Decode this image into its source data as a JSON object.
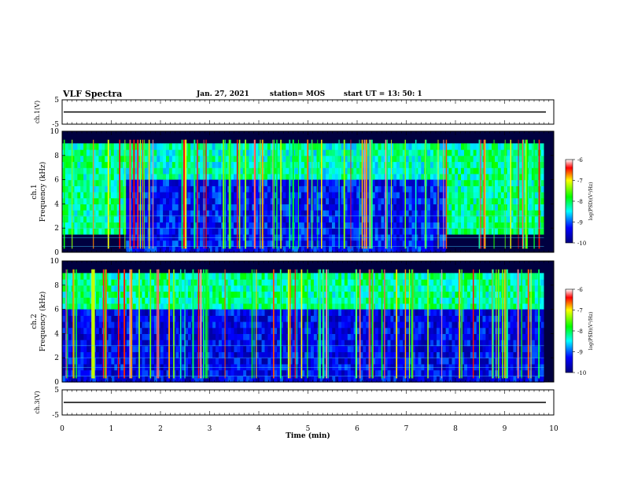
{
  "header": {
    "title": "VLF Spectra",
    "date": "Jan. 27, 2021",
    "station": "station= MOS",
    "start": "start  UT =   13: 50: 1"
  },
  "colors": {
    "colormap": [
      "#000080",
      "#0000ff",
      "#00ffff",
      "#00ff00",
      "#ffff00",
      "#ff0000",
      "#ffffff"
    ]
  },
  "chart_data": [
    {
      "type": "line",
      "name": "ch1-voltage",
      "ylabel": "ch.1(V)",
      "ylim": [
        -5,
        5
      ],
      "yticks": [
        "5",
        "-5"
      ],
      "x": [
        0,
        10
      ],
      "y": [
        0,
        0
      ]
    },
    {
      "type": "heatmap",
      "name": "ch1-spectrogram",
      "ylabel": "ch.1 Frequency (kHz)",
      "ylim": [
        0,
        10
      ],
      "yticks": [
        "0",
        "2",
        "4",
        "6",
        "8",
        "10"
      ],
      "xlim": [
        0,
        10
      ],
      "colorbar_label": "log(PSD)(V²/Hz)",
      "colorbar_ticks": [
        "-6",
        "-7",
        "-8",
        "-9",
        "-10"
      ],
      "clim": [
        -10,
        -6
      ],
      "bands": [
        {
          "t0": 0,
          "t1": 1.3,
          "f0": 1.5,
          "f1": 9.0,
          "level": -8.2
        },
        {
          "t0": 1.3,
          "t1": 7.8,
          "f0": 6.0,
          "f1": 9.0,
          "level": -8.3
        },
        {
          "t0": 1.3,
          "t1": 7.8,
          "f0": 0,
          "f1": 6.0,
          "level": -9.3
        },
        {
          "t0": 7.8,
          "t1": 9.8,
          "f0": 1.5,
          "f1": 9.0,
          "level": -8.2
        }
      ]
    },
    {
      "type": "heatmap",
      "name": "ch2-spectrogram",
      "ylabel": "ch.2 Frequency (kHz)",
      "ylim": [
        0,
        10
      ],
      "yticks": [
        "0",
        "2",
        "4",
        "6",
        "8",
        "10"
      ],
      "xlim": [
        0,
        10
      ],
      "colorbar_label": "log(PSD)(V²/Hz)",
      "colorbar_ticks": [
        "-6",
        "-7",
        "-8",
        "-9",
        "-10"
      ],
      "clim": [
        -10,
        -6
      ],
      "bands": [
        {
          "t0": 0,
          "t1": 9.8,
          "f0": 6.0,
          "f1": 9.0,
          "level": -8.2
        },
        {
          "t0": 0,
          "t1": 9.8,
          "f0": 0,
          "f1": 6.0,
          "level": -9.4
        }
      ]
    },
    {
      "type": "line",
      "name": "ch3-voltage",
      "ylabel": "ch.3(V)",
      "ylim": [
        -5,
        5
      ],
      "yticks": [
        "5",
        "-5"
      ],
      "x": [
        0,
        10
      ],
      "y": [
        0,
        0
      ]
    }
  ],
  "xaxis": {
    "label": "Time (min)",
    "ticks": [
      "0",
      "1",
      "2",
      "3",
      "4",
      "5",
      "6",
      "7",
      "8",
      "9",
      "10"
    ]
  }
}
